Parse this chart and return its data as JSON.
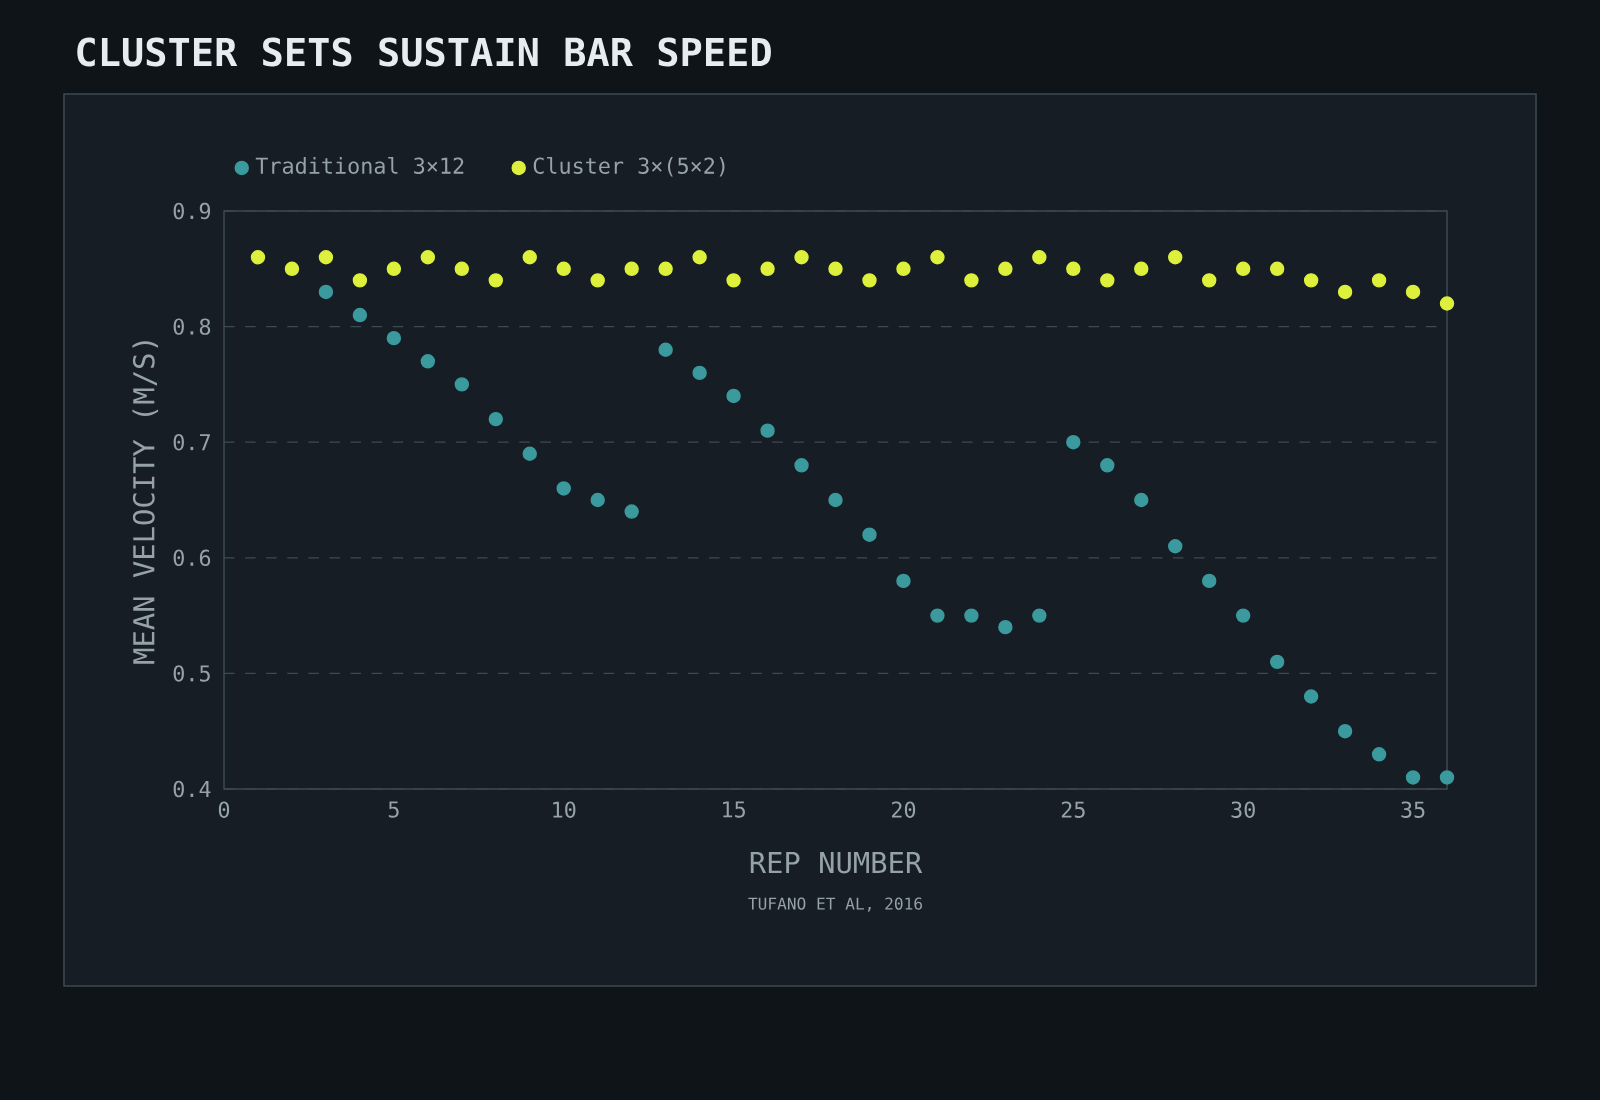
{
  "chart_data": {
    "type": "scatter",
    "title": "CLUSTER SETS SUSTAIN BAR SPEED",
    "xlabel": "REP NUMBER",
    "ylabel": "MEAN VELOCITY (M/S)",
    "annotations": [
      "TUFANO ET AL, 2016"
    ],
    "x": [
      1,
      2,
      3,
      4,
      5,
      6,
      7,
      8,
      9,
      10,
      11,
      12,
      13,
      14,
      15,
      16,
      17,
      18,
      19,
      20,
      21,
      22,
      23,
      24,
      25,
      26,
      27,
      28,
      29,
      30,
      31,
      32,
      33,
      34,
      35,
      36
    ],
    "series": [
      {
        "name": "Traditional 3×12",
        "color": "#3a9a9e",
        "values": [
          null,
          null,
          0.83,
          0.81,
          0.79,
          0.77,
          0.75,
          0.72,
          0.69,
          0.66,
          0.65,
          0.64,
          0.78,
          0.76,
          0.74,
          0.71,
          0.68,
          0.65,
          0.62,
          0.58,
          0.55,
          0.55,
          0.54,
          0.55,
          0.7,
          0.68,
          0.65,
          0.61,
          0.58,
          0.55,
          0.51,
          0.48,
          0.45,
          0.43,
          0.41,
          0.41
        ]
      },
      {
        "name": "Cluster 3×(5×2)",
        "color": "#dcf03c",
        "values": [
          0.86,
          0.85,
          0.86,
          0.84,
          0.85,
          0.86,
          0.85,
          0.84,
          0.86,
          0.85,
          0.84,
          0.85,
          0.85,
          0.86,
          0.84,
          0.85,
          0.86,
          0.85,
          0.84,
          0.85,
          0.86,
          0.84,
          0.85,
          0.86,
          0.85,
          0.84,
          0.85,
          0.86,
          0.84,
          0.85,
          0.85,
          0.84,
          0.83,
          0.84,
          0.83,
          0.82
        ]
      }
    ],
    "xlim": [
      0,
      36
    ],
    "ylim": [
      0.4,
      0.9
    ],
    "xticks": [
      0,
      5,
      10,
      15,
      20,
      25,
      30,
      35
    ],
    "yticks": [
      0.4,
      0.5,
      0.6,
      0.7,
      0.8,
      0.9
    ],
    "grid": "y",
    "legend": "top left",
    "marker": "circle"
  }
}
